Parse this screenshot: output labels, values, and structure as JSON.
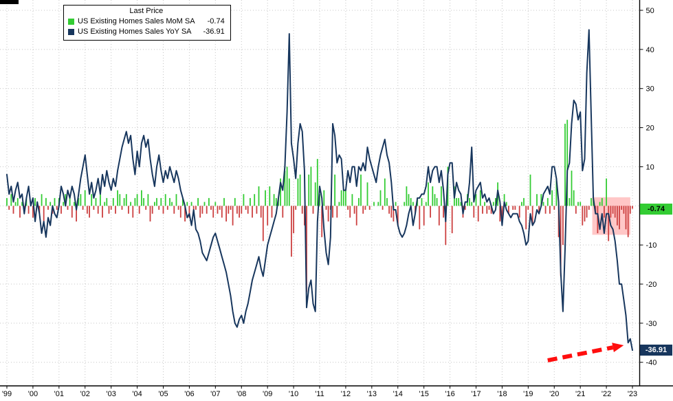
{
  "legend": {
    "title": "Last Price",
    "items": [
      {
        "label": "US Existing Homes Sales MoM SA",
        "value": "-0.74",
        "color": "#33cc33"
      },
      {
        "label": "US Existing Homes Sales YoY SA",
        "value": "-36.91",
        "color": "#17365d"
      }
    ]
  },
  "badges": {
    "mom": "-0.74",
    "yoy": "-36.91"
  },
  "chart_data": {
    "type": "combo",
    "frequency": "monthly",
    "start": "1999-01",
    "end": "2023-01",
    "x_labels": [
      "'99",
      "'00",
      "'01",
      "'02",
      "'03",
      "'04",
      "'05",
      "'06",
      "'07",
      "'08",
      "'09",
      "'10",
      "'11",
      "'12",
      "'13",
      "'14",
      "'15",
      "'16",
      "'17",
      "'18",
      "'19",
      "'20",
      "'21",
      "'22",
      "'23"
    ],
    "grid_levels": [
      50,
      40,
      30,
      20,
      10,
      0,
      -10,
      -20,
      -30,
      -40
    ],
    "y_tick_labels": [
      50,
      40,
      30,
      20,
      10,
      -10,
      -20,
      -30,
      -40
    ],
    "ylim": [
      -48,
      52
    ],
    "colors": {
      "grid": "#c4c4c4",
      "axis": "#000000",
      "background": "#ffffff"
    },
    "series": [
      {
        "name": "US Existing Homes Sales MoM SA",
        "type": "bar",
        "last": -0.74,
        "color_pos": "#33cc33",
        "color_neg": "#cc4040",
        "values": [
          2,
          -1,
          3,
          -2,
          1,
          2,
          -3,
          1,
          -1,
          2,
          -2,
          1,
          -3,
          2,
          1,
          -2,
          3,
          -4,
          2,
          -1,
          1,
          -2,
          2,
          -1,
          2,
          -2,
          1,
          3,
          -1,
          2,
          -3,
          1,
          -4,
          2,
          3,
          -1,
          4,
          -2,
          -3,
          3,
          -1,
          2,
          -2,
          3,
          -3,
          1,
          2,
          -2,
          -1,
          2,
          -2,
          4,
          3,
          -1,
          2,
          3,
          -2,
          1,
          -3,
          2,
          3,
          -2,
          4,
          2,
          -1,
          3,
          -4,
          -2,
          1,
          2,
          -1,
          2,
          -2,
          3,
          -1,
          2,
          1,
          -2,
          3,
          -1,
          -3,
          2,
          -4,
          1,
          -3,
          1,
          -2,
          -1,
          2,
          -3,
          -2,
          1,
          -2,
          2,
          -1,
          -3,
          1,
          -2,
          -1,
          -3,
          2,
          -4,
          -2,
          -1,
          -5,
          2,
          -2,
          -3,
          -2,
          3,
          -1,
          -2,
          2,
          -3,
          3,
          -2,
          5,
          -3,
          -9,
          4,
          -5,
          5,
          -3,
          3,
          2,
          2,
          7,
          -3,
          9,
          10,
          7,
          -13,
          -7,
          -1,
          7,
          8,
          -2,
          -5,
          -22,
          8,
          10,
          -2,
          6,
          12,
          3,
          -8,
          4,
          -1,
          -4,
          -1,
          -3,
          8,
          -3,
          1,
          4,
          4,
          4,
          -1,
          -3,
          3,
          -2,
          -5,
          2,
          8,
          -2,
          -1,
          6,
          -1,
          0,
          1,
          0,
          1,
          4,
          -1,
          7,
          2,
          -2,
          -3,
          -4,
          1,
          -5,
          0,
          0,
          1,
          5,
          3,
          2,
          1,
          -2,
          2,
          -6,
          2,
          -5,
          1,
          6,
          -3,
          5,
          3,
          2,
          -5,
          5,
          -3,
          -10,
          10,
          0,
          -7,
          5,
          2,
          2,
          1,
          -3,
          -1,
          3,
          2,
          1,
          -3,
          3,
          -4,
          4,
          -2,
          1,
          -2,
          -1,
          -2,
          1,
          2,
          6,
          -4,
          -3,
          3,
          1,
          -2,
          0,
          -1,
          -1,
          0,
          -3,
          1,
          2,
          -6,
          -1,
          8,
          -5,
          0,
          3,
          -2,
          3,
          1,
          -2,
          2,
          -2,
          4,
          -1,
          7,
          -8,
          -18,
          -10,
          21,
          22,
          2,
          9,
          4,
          -2,
          1,
          1,
          -5,
          -4,
          -3,
          -1,
          2,
          2,
          -2,
          -7,
          1,
          2,
          -3,
          7,
          -9,
          -3,
          -2,
          -3,
          -5,
          -6,
          -1,
          -2,
          -6,
          -8,
          -2,
          -0.74
        ]
      },
      {
        "name": "US Existing Homes Sales YoY SA",
        "type": "line",
        "last": -36.91,
        "color": "#17365d",
        "values": [
          8,
          3,
          5,
          1,
          4,
          6,
          2,
          3,
          -2,
          2,
          5,
          0,
          2,
          -4,
          1,
          -2,
          -7,
          -4,
          -8,
          -3,
          -5,
          0,
          -2,
          -3,
          0,
          5,
          3,
          0,
          4,
          2,
          5,
          3,
          -1,
          3,
          7,
          10,
          13,
          8,
          3,
          6,
          2,
          4,
          7,
          3,
          8,
          5,
          9,
          6,
          4,
          7,
          5,
          9,
          12,
          15,
          17,
          19,
          16,
          18,
          12,
          8,
          14,
          10,
          16,
          18,
          15,
          17,
          12,
          8,
          5,
          10,
          13,
          9,
          6,
          9,
          7,
          10,
          8,
          6,
          9,
          7,
          4,
          2,
          0,
          -3,
          -2,
          -5,
          -1,
          -6,
          -7,
          -9,
          -12,
          -13,
          -14,
          -12,
          -10,
          -8,
          -7,
          -9,
          -11,
          -13,
          -15,
          -17,
          -20,
          -23,
          -27,
          -30,
          -31,
          -29,
          -28,
          -30,
          -27,
          -25,
          -22,
          -19,
          -17,
          -15,
          -13,
          -16,
          -18,
          -14,
          -10,
          -8,
          -6,
          -4,
          -2,
          2,
          6,
          4,
          10,
          24,
          44,
          16,
          12,
          7,
          16,
          21,
          19,
          9,
          -26,
          -21,
          -19,
          -25,
          -27,
          -4,
          5,
          2,
          -6,
          -12,
          -15,
          -8,
          21,
          18,
          11,
          13,
          12,
          4,
          4,
          9,
          6,
          10,
          10,
          5,
          10,
          9,
          11,
          9,
          15,
          12,
          10,
          8,
          6,
          10,
          13,
          15,
          17,
          13,
          11,
          6,
          -1,
          -1,
          -5,
          -7,
          -8,
          -7,
          -5,
          -2,
          0,
          -5,
          -2,
          2,
          2,
          3,
          3,
          5,
          10,
          6,
          9,
          10,
          10,
          6,
          9,
          4,
          -4,
          8,
          11,
          11,
          2,
          6,
          4,
          3,
          -2,
          1,
          1,
          6,
          15,
          1,
          4,
          5,
          6,
          2,
          3,
          1,
          2,
          0,
          -2,
          -1,
          4,
          1,
          -5,
          1,
          -1,
          -2,
          -3,
          -2,
          -2,
          -2,
          -4,
          -5,
          -7,
          -10,
          -9,
          -2,
          -5,
          -4,
          -1,
          -2,
          0,
          3,
          4,
          5,
          3,
          10,
          10,
          7,
          1,
          -17,
          -27,
          -11,
          9,
          11,
          21,
          27,
          26,
          22,
          24,
          9,
          12,
          34,
          45,
          23,
          2,
          -2,
          -2,
          -6,
          -2,
          -7,
          -2,
          -2,
          -5,
          -6,
          -9,
          -14,
          -20,
          -20,
          -24,
          -28,
          -35,
          -34,
          -36.91
        ]
      }
    ],
    "annotations": {
      "highlight_box": {
        "from_month": 269.5,
        "to_month": 287,
        "value_top": 2.2,
        "value_bottom": -7.4,
        "color": "#ff9999",
        "opacity": 0.55
      },
      "arrow": {
        "from_month": 249,
        "from_value": -39.5,
        "to_month": 279,
        "to_value": -36.2,
        "color": "#ff0e0e"
      }
    }
  }
}
